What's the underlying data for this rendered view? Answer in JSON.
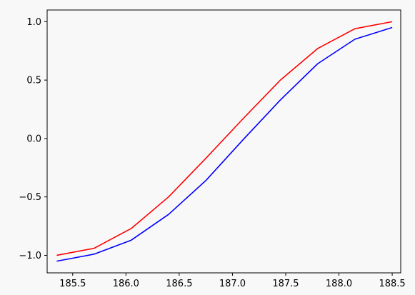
{
  "chart_data": {
    "type": "line",
    "title": "",
    "xlabel": "",
    "ylabel": "",
    "xlim": [
      185.26,
      188.58
    ],
    "ylim": [
      -1.15,
      1.1
    ],
    "grid": false,
    "x_ticks": [
      185.5,
      186.0,
      186.5,
      187.0,
      187.5,
      188.0,
      188.5
    ],
    "x_tick_labels": [
      "185.5",
      "186.0",
      "186.5",
      "187.0",
      "187.5",
      "188.0",
      "188.5"
    ],
    "y_ticks": [
      -1.0,
      -0.5,
      0.0,
      0.5,
      1.0
    ],
    "y_tick_labels": [
      "−1.0",
      "−0.5",
      "0.0",
      "0.5",
      "1.0"
    ],
    "series": [
      {
        "color": "#ff0000",
        "x": [
          185.35,
          185.7,
          186.05,
          186.4,
          186.75,
          187.1,
          187.45,
          187.8,
          188.15,
          188.5
        ],
        "y": [
          -1.0,
          -0.94,
          -0.77,
          -0.5,
          -0.17,
          0.17,
          0.5,
          0.77,
          0.94,
          1.0
        ]
      },
      {
        "color": "#0000ff",
        "x": [
          185.35,
          185.7,
          186.05,
          186.4,
          186.75,
          187.1,
          187.45,
          187.8,
          188.15,
          188.5
        ],
        "y": [
          -1.05,
          -0.99,
          -0.87,
          -0.65,
          -0.36,
          -0.01,
          0.33,
          0.64,
          0.85,
          0.95
        ]
      }
    ]
  }
}
